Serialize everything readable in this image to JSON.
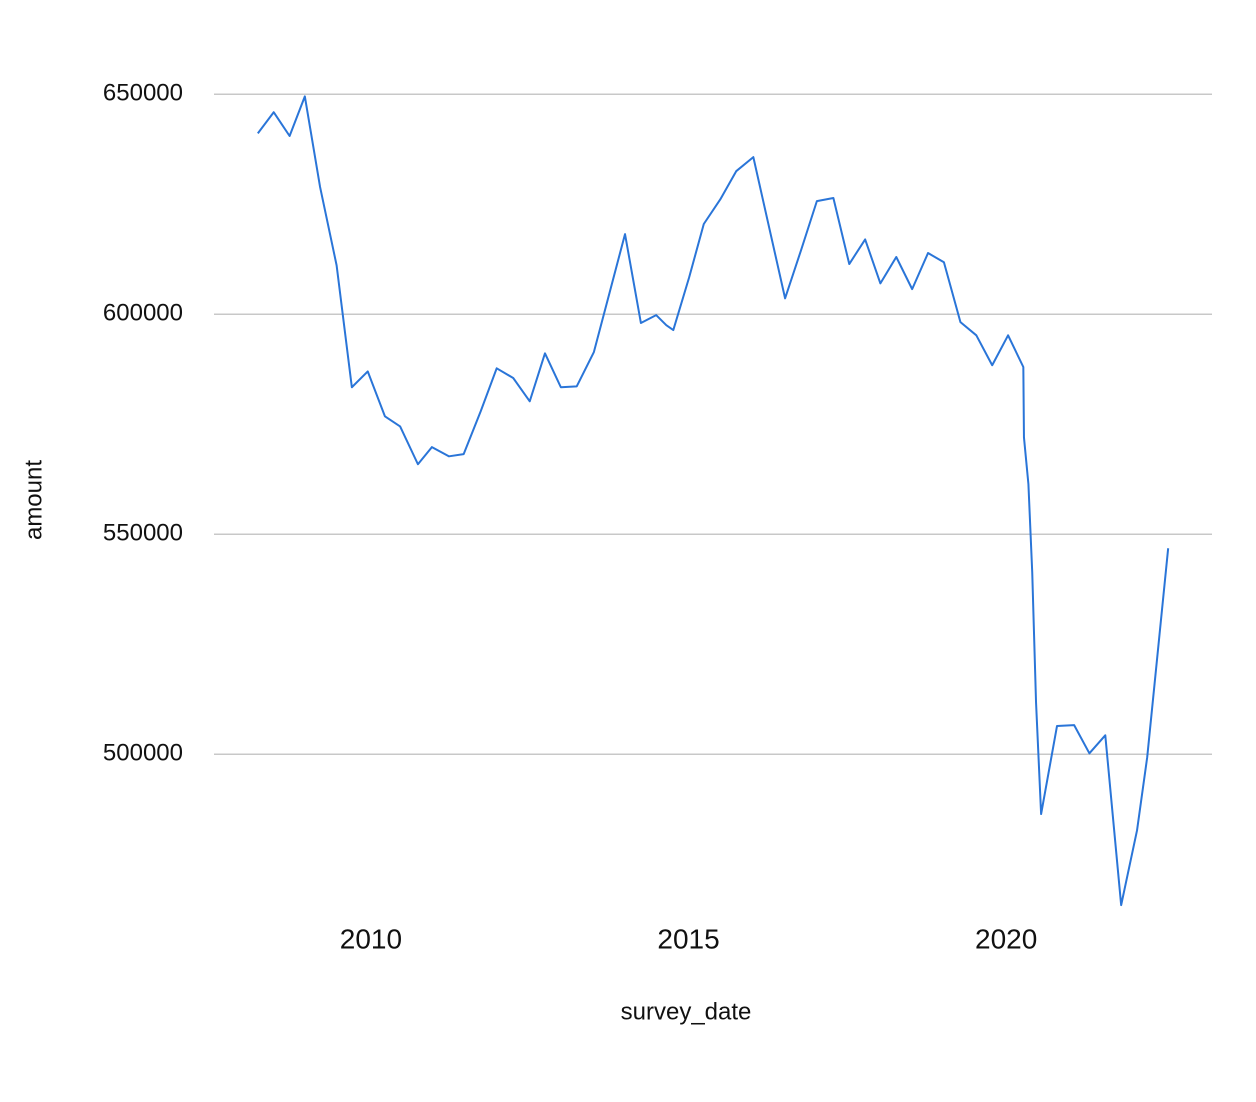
{
  "chart_data": {
    "type": "line",
    "x_label": "survey_date",
    "y_label": "amount",
    "x": [
      2008.22,
      2008.47,
      2008.72,
      2008.96,
      2009.2,
      2009.46,
      2009.7,
      2009.95,
      2010.22,
      2010.46,
      2010.74,
      2010.96,
      2011.23,
      2011.46,
      2011.73,
      2011.98,
      2012.24,
      2012.5,
      2012.74,
      2012.99,
      2013.24,
      2013.51,
      2013.75,
      2014.0,
      2014.25,
      2014.49,
      2014.65,
      2014.76,
      2015.01,
      2015.24,
      2015.5,
      2015.75,
      2016.02,
      2016.52,
      2016.77,
      2017.02,
      2017.28,
      2017.53,
      2017.78,
      2018.02,
      2018.27,
      2018.52,
      2018.77,
      2019.02,
      2019.28,
      2019.53,
      2019.78,
      2020.03,
      2020.27,
      2020.28,
      2020.35,
      2020.41,
      2020.47,
      2020.55,
      2020.8,
      2021.07,
      2021.31,
      2021.56,
      2021.81,
      2022.06,
      2022.22,
      2022.55
    ],
    "values": [
      641100,
      645900,
      640500,
      649500,
      628900,
      611100,
      583400,
      587000,
      576800,
      574500,
      565900,
      569800,
      567700,
      568200,
      578000,
      587700,
      585500,
      580200,
      591100,
      583400,
      583600,
      591400,
      604500,
      618200,
      598000,
      599800,
      597500,
      596400,
      608400,
      620500,
      626100,
      632500,
      635700,
      603600,
      614500,
      625700,
      626400,
      611400,
      617000,
      607000,
      613000,
      605700,
      613900,
      611800,
      598200,
      595200,
      588400,
      595200,
      588000,
      572000,
      561400,
      541400,
      511800,
      486400,
      506400,
      506600,
      500200,
      504300,
      465700,
      482700,
      499300,
      546800
    ],
    "color": "#2a75d8",
    "xlim": [
      2007.53,
      2023.24
    ],
    "xticks": [
      2010,
      2015,
      2020
    ],
    "ylim": [
      462000,
      655500
    ],
    "yticks": [
      500000,
      550000,
      600000,
      650000
    ],
    "grid": true
  }
}
